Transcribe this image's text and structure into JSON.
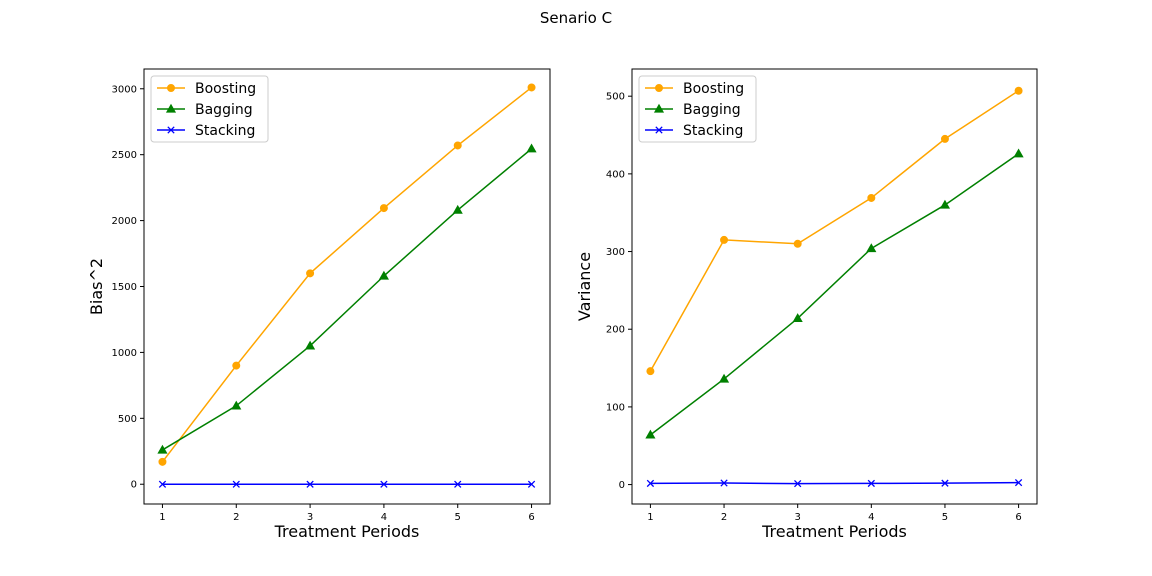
{
  "figure": {
    "title": "Senario C"
  },
  "colors": {
    "boosting": "#FFA500",
    "bagging": "#008000",
    "stacking": "#0000FF"
  },
  "chart_data": [
    {
      "type": "line",
      "xlabel": "Treatment Periods",
      "ylabel": "Bias^2",
      "x": [
        1,
        2,
        3,
        4,
        5,
        6
      ],
      "xticks": [
        "1",
        "2",
        "3",
        "4",
        "5",
        "6"
      ],
      "ylim": [
        -150,
        3150
      ],
      "yticks": [
        0,
        500,
        1000,
        1500,
        2000,
        2500,
        3000
      ],
      "grid": false,
      "legend": "top-left",
      "series": [
        {
          "name": "Boosting",
          "marker": "circle",
          "color": "#FFA500",
          "values": [
            170,
            900,
            1600,
            2095,
            2570,
            3010
          ]
        },
        {
          "name": "Bagging",
          "marker": "triangle",
          "color": "#008000",
          "values": [
            260,
            595,
            1050,
            1580,
            2080,
            2545
          ]
        },
        {
          "name": "Stacking",
          "marker": "x",
          "color": "#0000FF",
          "values": [
            0,
            0,
            0,
            0,
            0,
            0
          ]
        }
      ]
    },
    {
      "type": "line",
      "xlabel": "Treatment Periods",
      "ylabel": "Variance",
      "x": [
        1,
        2,
        3,
        4,
        5,
        6
      ],
      "xticks": [
        "1",
        "2",
        "3",
        "4",
        "5",
        "6"
      ],
      "ylim": [
        -25,
        535
      ],
      "yticks": [
        0,
        100,
        200,
        300,
        400,
        500
      ],
      "grid": false,
      "legend": "top-left",
      "series": [
        {
          "name": "Boosting",
          "marker": "circle",
          "color": "#FFA500",
          "values": [
            146,
            315,
            310,
            369,
            445,
            507
          ]
        },
        {
          "name": "Bagging",
          "marker": "triangle",
          "color": "#008000",
          "values": [
            64,
            136,
            214,
            304,
            360,
            426
          ]
        },
        {
          "name": "Stacking",
          "marker": "x",
          "color": "#0000FF",
          "values": [
            1.5,
            2,
            1.2,
            1.5,
            1.8,
            2.5
          ]
        }
      ]
    }
  ]
}
